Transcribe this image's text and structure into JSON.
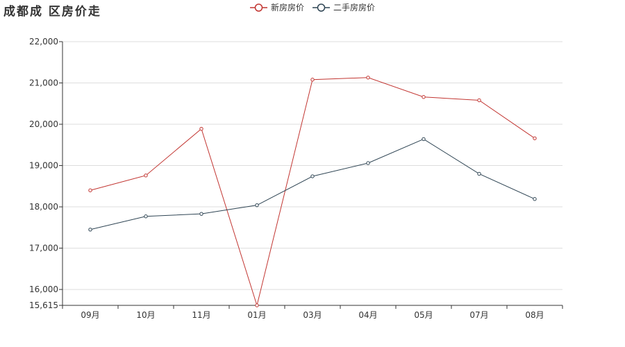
{
  "chart_data": {
    "type": "line",
    "title": "成都成 区房价走",
    "xlabel": "",
    "ylabel": "",
    "categories": [
      "09月",
      "10月",
      "11月",
      "01月",
      "03月",
      "04月",
      "05月",
      "07月",
      "08月"
    ],
    "ylim": [
      15615,
      22000
    ],
    "yticks": [
      15615,
      16000,
      17000,
      18000,
      19000,
      20000,
      21000,
      22000
    ],
    "ytick_labels": [
      "15,615",
      "16,000",
      "17,000",
      "18,000",
      "19,000",
      "20,000",
      "21,000",
      "22,000"
    ],
    "grid": true,
    "legend_position": "top-center",
    "series": [
      {
        "name": "新房房价",
        "color": "#c23531",
        "values": [
          18400,
          18760,
          19890,
          15615,
          21080,
          21130,
          20660,
          20580,
          19660
        ]
      },
      {
        "name": "二手房房价",
        "color": "#2f4554",
        "values": [
          17450,
          17770,
          17830,
          18040,
          18740,
          19060,
          19640,
          18800,
          18190
        ]
      }
    ]
  }
}
